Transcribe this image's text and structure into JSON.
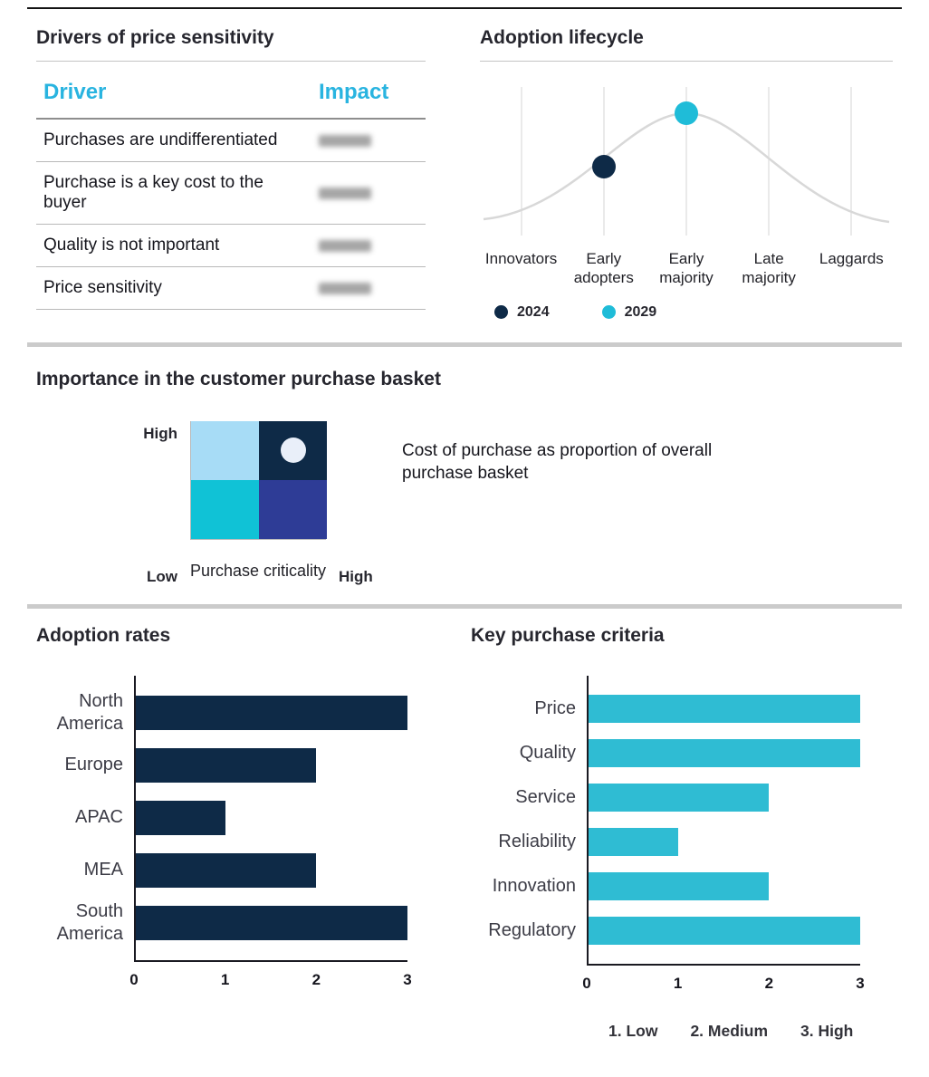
{
  "colors": {
    "navy": "#0e2a47",
    "cyan_header": "#29b4e0",
    "cyan_bar": "#2fbcd3",
    "cyan_dot": "#1fbcd8",
    "matrix_light_blue": "#a7dcf6",
    "matrix_cyan": "#10c2d6",
    "matrix_indigo": "#2e3c96",
    "matrix_navy": "#0e2a47",
    "curve_gray": "#d8d8d8"
  },
  "sections": {
    "price_sensitivity": {
      "title": "Drivers of price sensitivity",
      "table": {
        "col_driver": "Driver",
        "col_impact": "Impact",
        "rows": [
          "Purchases are undifferentiated",
          "Purchase is a key cost to the buyer",
          "Quality is not important",
          "Price sensitivity"
        ],
        "impact_values_blurred": true
      }
    },
    "adoption_lifecycle": {
      "title": "Adoption lifecycle",
      "categories": [
        "Innovators",
        "Early adopters",
        "Early majority",
        "Late majority",
        "Laggards"
      ],
      "points": [
        {
          "label": "2024",
          "category": "Early adopters",
          "category_index": 1,
          "color": "#0e2a47"
        },
        {
          "label": "2029",
          "category": "Early majority",
          "category_index": 2,
          "color": "#1fbcd8"
        }
      ],
      "legend": [
        {
          "label": "2024",
          "color": "#0e2a47"
        },
        {
          "label": "2029",
          "color": "#1fbcd8"
        }
      ]
    },
    "purchase_basket": {
      "title": "Importance in the customer purchase basket",
      "y_axis_top": "High",
      "y_axis_bottom": "Low",
      "x_axis_right": "High",
      "x_axis_label": "Purchase criticality",
      "caption": "Cost of purchase as proportion of overall purchase basket",
      "quadrants": [
        {
          "position": "top-left",
          "color": "#a7dcf6",
          "marker": false
        },
        {
          "position": "top-right",
          "color": "#0e2a47",
          "marker": true
        },
        {
          "position": "bottom-left",
          "color": "#10c2d6",
          "marker": false
        },
        {
          "position": "bottom-right",
          "color": "#2e3c96",
          "marker": false
        }
      ]
    },
    "adoption_rates": {
      "title": "Adoption rates",
      "categories": [
        "North America",
        "Europe",
        "APAC",
        "MEA",
        "South America"
      ],
      "values": [
        3,
        2,
        1,
        2,
        3
      ],
      "xticks": [
        "0",
        "1",
        "2",
        "3"
      ],
      "xmax": 3,
      "bar_color": "#0e2a47"
    },
    "key_purchase_criteria": {
      "title": "Key purchase criteria",
      "categories": [
        "Price",
        "Quality",
        "Service",
        "Reliability",
        "Innovation",
        "Regulatory"
      ],
      "values": [
        3,
        3,
        2,
        1,
        2,
        3
      ],
      "xticks": [
        "0",
        "1",
        "2",
        "3"
      ],
      "xmax": 3,
      "bar_color": "#2fbcd3",
      "scale_legend": [
        "1. Low",
        "2. Medium",
        "3. High"
      ]
    }
  },
  "chart_data": [
    {
      "type": "scatter",
      "title": "Adoption lifecycle",
      "x_categories": [
        "Innovators",
        "Early adopters",
        "Early majority",
        "Late majority",
        "Laggards"
      ],
      "series": [
        {
          "name": "2024",
          "x": "Early adopters"
        },
        {
          "name": "2029",
          "x": "Early majority"
        }
      ],
      "background_curve": "bell-shaped adoption curve, peak at Early majority",
      "legend_position": "bottom"
    },
    {
      "type": "table",
      "title": "Drivers of price sensitivity",
      "columns": [
        "Driver",
        "Impact"
      ],
      "rows": [
        [
          "Purchases are undifferentiated",
          ""
        ],
        [
          "Purchase is a key cost to the buyer",
          ""
        ],
        [
          "Quality is not important",
          ""
        ],
        [
          "Price sensitivity",
          ""
        ]
      ],
      "note": "Impact column values are blurred/redacted in the image"
    },
    {
      "type": "heatmap",
      "title": "Importance in the customer purchase basket",
      "xlabel": "Purchase criticality",
      "x_range": [
        "Low",
        "High"
      ],
      "y_range": [
        "Low",
        "High"
      ],
      "cells": [
        {
          "x": "low",
          "y": "high",
          "color": "#a7dcf6"
        },
        {
          "x": "high",
          "y": "high",
          "color": "#0e2a47",
          "marker": "circle"
        },
        {
          "x": "low",
          "y": "low",
          "color": "#10c2d6"
        },
        {
          "x": "high",
          "y": "low",
          "color": "#2e3c96"
        }
      ],
      "annotation": "Cost of purchase as proportion of overall purchase basket"
    },
    {
      "type": "bar",
      "orientation": "horizontal",
      "title": "Adoption rates",
      "categories": [
        "North America",
        "Europe",
        "APAC",
        "MEA",
        "South America"
      ],
      "values": [
        3,
        2,
        1,
        2,
        3
      ],
      "xlim": [
        0,
        3
      ],
      "xticks": [
        0,
        1,
        2,
        3
      ]
    },
    {
      "type": "bar",
      "orientation": "horizontal",
      "title": "Key purchase criteria",
      "categories": [
        "Price",
        "Quality",
        "Service",
        "Reliability",
        "Innovation",
        "Regulatory"
      ],
      "values": [
        3,
        3,
        2,
        1,
        2,
        3
      ],
      "xlim": [
        0,
        3
      ],
      "xticks": [
        0,
        1,
        2,
        3
      ],
      "scale": "1. Low, 2. Medium, 3. High"
    }
  ]
}
